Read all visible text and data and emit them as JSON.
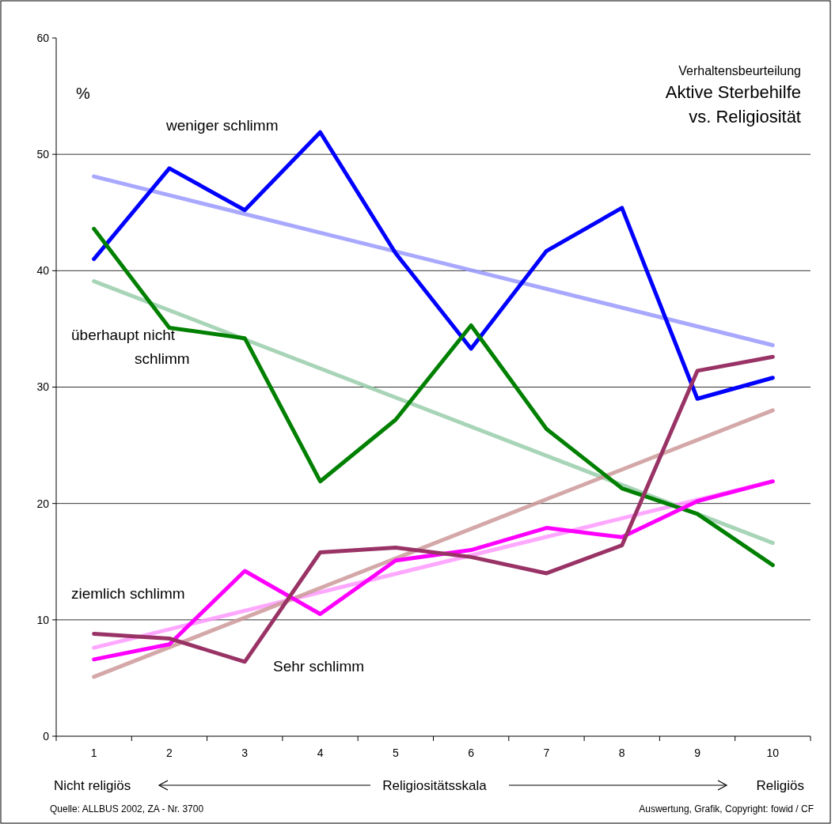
{
  "chart_data": {
    "type": "line",
    "subtitle": "Verhaltensbeurteilung",
    "title": "Aktive Sterbehilfe vs. Religiosität",
    "ylabel": "%",
    "xlabel": "Religiositätsskala",
    "categories": [
      "1",
      "2",
      "3",
      "4",
      "5",
      "6",
      "7",
      "8",
      "9",
      "10"
    ],
    "ylim": [
      0,
      60
    ],
    "yticks": [
      0,
      10,
      20,
      30,
      40,
      50,
      60
    ],
    "grid": "y",
    "marker": "none",
    "line_style": "solid",
    "series": [
      {
        "name": "weniger schlimm",
        "color": "#0000ff",
        "values": [
          41.0,
          48.8,
          45.2,
          51.9,
          41.5,
          33.3,
          41.7,
          45.4,
          29.0,
          30.8
        ]
      },
      {
        "name": "überhaupt nicht schlimm",
        "color": "#008000",
        "values": [
          43.6,
          35.1,
          34.2,
          21.9,
          27.2,
          35.3,
          26.4,
          21.3,
          19.1,
          14.7
        ]
      },
      {
        "name": "ziemlich schlimm",
        "color": "#ff00ff",
        "values": [
          6.6,
          7.9,
          14.2,
          10.5,
          15.1,
          16.0,
          17.9,
          17.1,
          20.2,
          21.9
        ]
      },
      {
        "name": "Sehr schlimm",
        "color": "#993366",
        "values": [
          8.8,
          8.4,
          6.4,
          15.8,
          16.2,
          15.4,
          14.0,
          16.4,
          31.4,
          32.6
        ]
      },
      {
        "color": "#9999ff",
        "x": [
          "1",
          "10"
        ],
        "values": [
          48.1,
          33.6
        ]
      },
      {
        "color": "#99ccaa",
        "x": [
          "1",
          "10"
        ],
        "values": [
          39.1,
          16.6
        ]
      },
      {
        "color": "#ff99ff",
        "x": [
          "1",
          "10"
        ],
        "values": [
          7.6,
          21.9
        ]
      },
      {
        "color": "#cc9999",
        "x": [
          "1",
          "10"
        ],
        "values": [
          5.1,
          28.0
        ]
      }
    ],
    "annotations": [
      "Nicht religiös",
      "Religiös",
      "Quelle: ALLBUS 2002, ZA - Nr. 3700",
      "Auswertung, Grafik, Copyright: fowid / CF"
    ]
  }
}
